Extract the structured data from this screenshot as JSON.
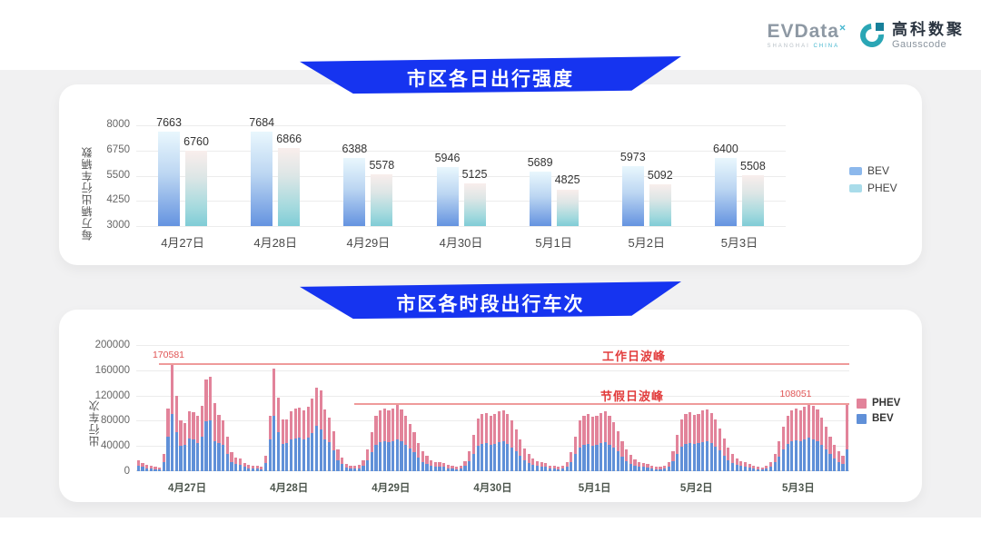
{
  "header": {
    "evdata": {
      "name": "EVData",
      "sup": "×",
      "tagline_left": "SHANGHAI",
      "tagline_right": "CHINA"
    },
    "gausscode": {
      "cn": "高科数聚",
      "en": "Gausscode"
    }
  },
  "colors": {
    "banner_blue": "#1634f0",
    "bev_gradient_top": "#e9f7fd",
    "bev_gradient_bottom": "#6493e0",
    "phev_gradient_top": "#f9eeec",
    "phev_gradient_bottom": "#7fccd6",
    "bev_solid": "#6090d8",
    "phev_solid": "#e2839a",
    "legend1_bev": "#8cb8ec",
    "legend1_phev": "#a9dcea",
    "annotation_red": "#e23c3c",
    "annotation_line": "#ef9a9a"
  },
  "chart_data": [
    {
      "type": "bar",
      "title": "市区各日出行强度",
      "ylabel": "每万辆出行车辆数",
      "ymin": 3000,
      "ymax": 8000,
      "yticks": [
        8000,
        6750,
        5500,
        4250,
        3000
      ],
      "grid": true,
      "legend_position": "right",
      "categories": [
        "4月27日",
        "4月28日",
        "4月29日",
        "4月30日",
        "5月1日",
        "5月2日",
        "5月3日"
      ],
      "series": [
        {
          "name": "BEV",
          "values": [
            7663,
            7684,
            6388,
            5946,
            5689,
            5973,
            6400
          ]
        },
        {
          "name": "PHEV",
          "values": [
            6760,
            6866,
            5578,
            5125,
            4825,
            5092,
            5508
          ]
        }
      ],
      "legend": [
        "BEV",
        "PHEV"
      ]
    },
    {
      "type": "bar",
      "subtype": "stacked",
      "title": "市区各时段出行车次",
      "ylabel": "出行车次",
      "ymin": 0,
      "ymax": 200000,
      "yticks": [
        200000,
        160000,
        120000,
        80000,
        40000,
        0
      ],
      "grid": true,
      "legend_position": "right",
      "categories": [
        "4月27日",
        "4月28日",
        "4月29日",
        "4月30日",
        "5月1日",
        "5月2日",
        "5月3日"
      ],
      "bars_per_day": 24,
      "legend": [
        "PHEV",
        "BEV"
      ],
      "annotations": [
        {
          "label": "工作日波峰",
          "value": 170581,
          "value_label": "170581"
        },
        {
          "label": "节假日波峰",
          "value": 108051,
          "value_label": "108051"
        }
      ],
      "series": [
        {
          "name": "BEV",
          "days": [
            [
              9000,
              6500,
              5000,
              4000,
              3500,
              3200,
              14000,
              54000,
              91000,
              62000,
              41000,
              42000,
              52000,
              51000,
              45000,
              55000,
              79000,
              80000,
              48000,
              44000,
              42000,
              28000,
              15000,
              11000
            ],
            [
              10000,
              6500,
              5000,
              4500,
              4000,
              3500,
              13000,
              51000,
              88000,
              62000,
              43000,
              45000,
              50000,
              52000,
              53000,
              50000,
              53000,
              60000,
              72000,
              66000,
              51000,
              46000,
              33000,
              18000
            ],
            [
              11000,
              6000,
              4500,
              4000,
              5000,
              9000,
              17000,
              30000,
              42000,
              46000,
              48000,
              46000,
              48000,
              50000,
              47000,
              42000,
              36000,
              30000,
              22000,
              15000,
              12000,
              9000,
              7000,
              7000
            ],
            [
              6500,
              5000,
              4000,
              3500,
              4500,
              8000,
              16000,
              28000,
              40000,
              43000,
              44000,
              42000,
              43000,
              46000,
              47000,
              43000,
              38000,
              32000,
              24000,
              17000,
              13000,
              10000,
              8000,
              7000
            ],
            [
              6500,
              4500,
              4000,
              3500,
              4000,
              7000,
              15000,
              27000,
              38000,
              42000,
              43000,
              41000,
              42000,
              44000,
              46000,
              42000,
              37000,
              31000,
              23000,
              16000,
              12000,
              9000,
              7000,
              6500
            ],
            [
              6000,
              4500,
              3500,
              3500,
              4000,
              7500,
              16000,
              28000,
              39000,
              43000,
              45000,
              43000,
              44000,
              46000,
              47000,
              44000,
              39000,
              33000,
              25000,
              18000,
              13000,
              10000,
              8000,
              7000
            ],
            [
              6000,
              4500,
              3500,
              3000,
              4000,
              7000,
              14000,
              23000,
              34000,
              43000,
              47000,
              49000,
              47000,
              50000,
              53000,
              51000,
              48000,
              42000,
              34000,
              27000,
              20000,
              15000,
              12000,
              35000
            ]
          ]
        },
        {
          "name": "PHEV",
          "days": [
            [
              9000,
              6500,
              5000,
              4000,
              3500,
              3300,
              13000,
              46000,
              79581,
              57000,
              39000,
              34000,
              43000,
              43000,
              43000,
              48000,
              66000,
              69000,
              60000,
              45000,
              38000,
              27000,
              15000,
              11000
            ],
            [
              10000,
              6500,
              5000,
              4500,
              4000,
              3500,
              12000,
              37000,
              75000,
              55000,
              39000,
              37000,
              45000,
              48000,
              48000,
              46000,
              49000,
              55000,
              61000,
              62000,
              47000,
              39000,
              30000,
              17000
            ],
            [
              11000,
              6000,
              4500,
              4000,
              5000,
              9000,
              18000,
              32000,
              46000,
              51000,
              51000,
              50000,
              52000,
              55000,
              51000,
              46000,
              39000,
              32000,
              23000,
              17000,
              13000,
              9000,
              8000,
              7000
            ],
            [
              6500,
              5000,
              4000,
              3500,
              4500,
              8000,
              16000,
              30000,
              44000,
              47000,
              48000,
              46000,
              47000,
              49000,
              50000,
              47000,
              42000,
              34000,
              26000,
              19000,
              15000,
              10000,
              8000,
              7000
            ],
            [
              6500,
              4500,
              4000,
              3500,
              4000,
              7000,
              15000,
              28000,
              42000,
              46000,
              47000,
              45000,
              46000,
              48000,
              49000,
              46000,
              41000,
              33000,
              25000,
              18000,
              14000,
              10000,
              8000,
              6500
            ],
            [
              6000,
              4500,
              3500,
              3500,
              4000,
              7500,
              16000,
              30000,
              43000,
              47000,
              48000,
              46000,
              47000,
              50000,
              51000,
              48000,
              43000,
              35000,
              27000,
              20000,
              15000,
              10000,
              8000,
              7000
            ],
            [
              6000,
              4500,
              3500,
              3000,
              4000,
              7000,
              14000,
              25000,
              36000,
              45000,
              49000,
              51000,
              49000,
              52000,
              55051,
              53000,
              50000,
              43000,
              36000,
              28000,
              22000,
              17000,
              13000,
              72000
            ]
          ]
        }
      ]
    }
  ]
}
